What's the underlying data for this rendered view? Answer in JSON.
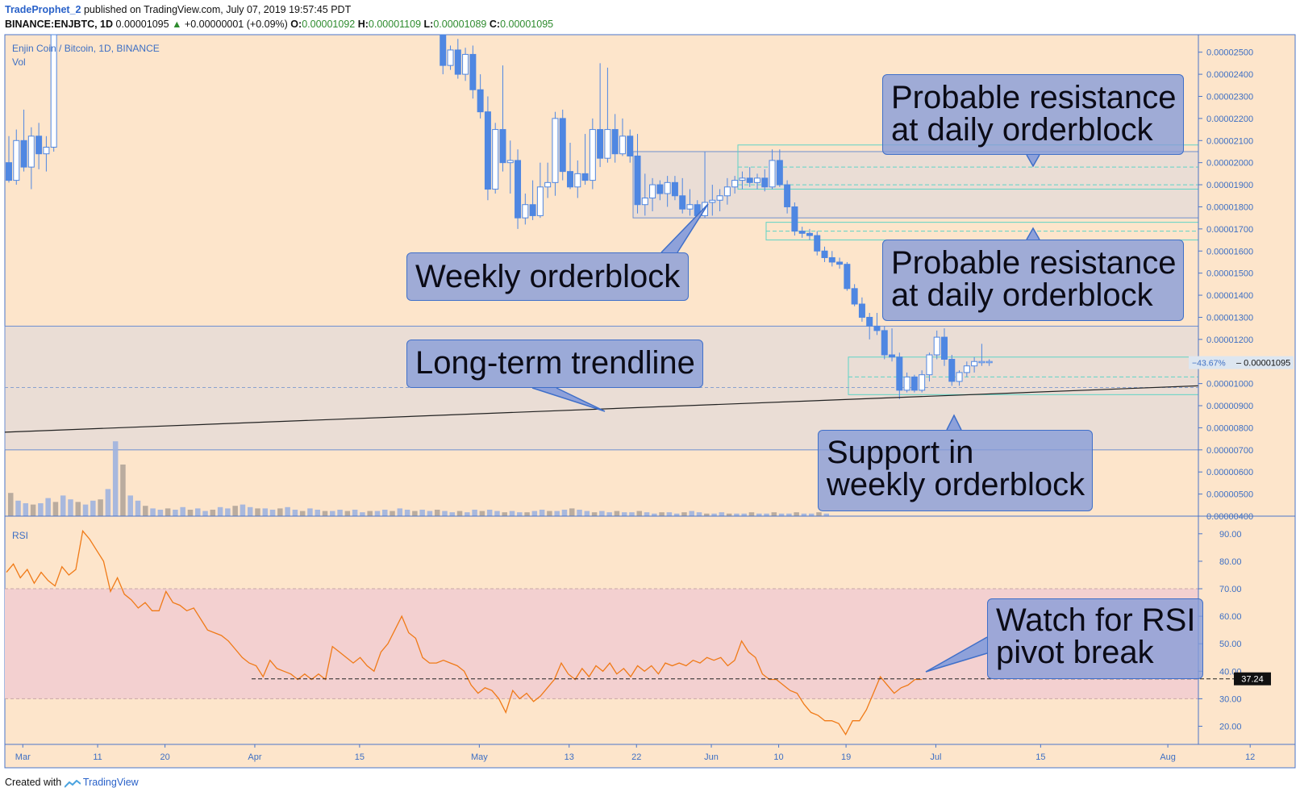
{
  "header": {
    "author": "TradeProphet_2",
    "published": "published on TradingView.com, July 07, 2019 19:57:45 PDT",
    "symbol": "BINANCE:ENJBTC, 1D",
    "last": "0.00001095",
    "change": "+0.00000001 (+0.09%)",
    "o_label": "O:",
    "o_value": "0.00001092",
    "h_label": "H:",
    "h_value": "0.00001109",
    "l_label": "L:",
    "l_value": "0.00001089",
    "c_label": "C:",
    "c_value": "0.00001095"
  },
  "footer": {
    "created_with": "Created with",
    "brand": "TradingView"
  },
  "colors": {
    "background": "#fde5cb",
    "candle_blue": "#4f87e2",
    "orderblock_fill": "#eaddd5",
    "zone_line": "#5fd3c6",
    "rsi_line": "#f07a17",
    "rsi_band": "#f3d0d0",
    "axis_text": "#3d6fc4",
    "annotation_fill": "#8b9fd8"
  },
  "chart_data": [
    {
      "type": "candlestick",
      "title": "Enjin Coin / Bitcoin, 1D, BINANCE",
      "volume_label": "Vol",
      "y_ticks": [
        "0.00002500",
        "0.00002400",
        "0.00002300",
        "0.00002200",
        "0.00002100",
        "0.00002000",
        "0.00001900",
        "0.00001800",
        "0.00001700",
        "0.00001600",
        "0.00001500",
        "0.00001400",
        "0.00001300",
        "0.00001200",
        "0.00001100",
        "0.00001000",
        "0.00000900",
        "0.00000800",
        "0.00000700",
        "0.00000600",
        "0.00000500",
        "0.00000400"
      ],
      "ylim": [
        4e-06,
        2.55e-05
      ],
      "x_ticks": [
        "Mar",
        "11",
        "20",
        "Apr",
        "15",
        "May",
        "13",
        "22",
        "Jun",
        "10",
        "19",
        "Jul",
        "15",
        "Aug",
        "12"
      ],
      "last_price_label": "0.00001095",
      "last_change_label": "−43.67%",
      "weekly_orderblock_upper": [
        2.05e-05,
        1.75e-05
      ],
      "weekly_orderblock_lower": [
        1.26e-05,
        7e-06
      ],
      "daily_zone_upper": [
        2.08e-05,
        1.88e-05
      ],
      "daily_zone_middle": [
        1.73e-05,
        1.65e-05
      ],
      "daily_zone_lower": [
        1.12e-05,
        9.5e-06
      ],
      "trendline_y": [
        7.8e-06,
        9.9e-06
      ],
      "candles": [
        {
          "date": "2019-02-28",
          "o": 2e-05,
          "h": 2.12e-05,
          "l": 1.91e-05,
          "c": 1.92e-05
        },
        {
          "date": "2019-03-01",
          "o": 1.92e-05,
          "h": 2.15e-05,
          "l": 1.9e-05,
          "c": 2.1e-05
        },
        {
          "date": "2019-03-02",
          "o": 2.1e-05,
          "h": 2.24e-05,
          "l": 1.96e-05,
          "c": 1.98e-05
        },
        {
          "date": "2019-03-03",
          "o": 1.98e-05,
          "h": 2.16e-05,
          "l": 1.88e-05,
          "c": 2.12e-05
        },
        {
          "date": "2019-03-04",
          "o": 2.12e-05,
          "h": 2.18e-05,
          "l": 1.97e-05,
          "c": 2.04e-05
        },
        {
          "date": "2019-03-05",
          "o": 2.04e-05,
          "h": 2.12e-05,
          "l": 1.96e-05,
          "c": 2.07e-05
        },
        {
          "date": "2019-03-06",
          "o": 2.07e-05,
          "h": 2.6e-05,
          "l": 2.05e-05,
          "c": 2.58e-05
        },
        {
          "date": "2019-04-27",
          "o": 2.6e-05,
          "h": 2.62e-05,
          "l": 2.4e-05,
          "c": 2.44e-05
        },
        {
          "date": "2019-04-28",
          "o": 2.44e-05,
          "h": 2.53e-05,
          "l": 2.42e-05,
          "c": 2.51e-05
        },
        {
          "date": "2019-04-29",
          "o": 2.51e-05,
          "h": 2.56e-05,
          "l": 2.38e-05,
          "c": 2.4e-05
        },
        {
          "date": "2019-04-30",
          "o": 2.4e-05,
          "h": 2.52e-05,
          "l": 2.37e-05,
          "c": 2.49e-05
        },
        {
          "date": "2019-05-01",
          "o": 2.49e-05,
          "h": 2.53e-05,
          "l": 2.29e-05,
          "c": 2.33e-05
        },
        {
          "date": "2019-05-02",
          "o": 2.33e-05,
          "h": 2.4e-05,
          "l": 2.2e-05,
          "c": 2.23e-05
        },
        {
          "date": "2019-05-03",
          "o": 2.23e-05,
          "h": 2.3e-05,
          "l": 1.83e-05,
          "c": 1.88e-05
        },
        {
          "date": "2019-05-04",
          "o": 1.88e-05,
          "h": 2.18e-05,
          "l": 1.86e-05,
          "c": 2.15e-05
        },
        {
          "date": "2019-05-05",
          "o": 2.15e-05,
          "h": 2.44e-05,
          "l": 1.96e-05,
          "c": 2e-05
        },
        {
          "date": "2019-05-06",
          "o": 2e-05,
          "h": 2.1e-05,
          "l": 1.86e-05,
          "c": 2.01e-05
        },
        {
          "date": "2019-05-07",
          "o": 2.01e-05,
          "h": 2.06e-05,
          "l": 1.7e-05,
          "c": 1.75e-05
        },
        {
          "date": "2019-05-08",
          "o": 1.75e-05,
          "h": 1.86e-05,
          "l": 1.72e-05,
          "c": 1.81e-05
        },
        {
          "date": "2019-05-09",
          "o": 1.81e-05,
          "h": 1.92e-05,
          "l": 1.74e-05,
          "c": 1.76e-05
        },
        {
          "date": "2019-05-10",
          "o": 1.76e-05,
          "h": 2e-05,
          "l": 1.75e-05,
          "c": 1.89e-05
        },
        {
          "date": "2019-05-11",
          "o": 1.89e-05,
          "h": 2e-05,
          "l": 1.84e-05,
          "c": 1.91e-05
        },
        {
          "date": "2019-05-12",
          "o": 1.91e-05,
          "h": 2.23e-05,
          "l": 1.85e-05,
          "c": 2.2e-05
        },
        {
          "date": "2019-05-13",
          "o": 2.2e-05,
          "h": 2.24e-05,
          "l": 1.92e-05,
          "c": 1.96e-05
        },
        {
          "date": "2019-05-14",
          "o": 1.96e-05,
          "h": 2.09e-05,
          "l": 1.88e-05,
          "c": 1.89e-05
        },
        {
          "date": "2019-05-15",
          "o": 1.89e-05,
          "h": 2.01e-05,
          "l": 1.84e-05,
          "c": 1.95e-05
        },
        {
          "date": "2019-05-16",
          "o": 1.95e-05,
          "h": 2.13e-05,
          "l": 1.9e-05,
          "c": 1.92e-05
        },
        {
          "date": "2019-05-17",
          "o": 1.92e-05,
          "h": 2.2e-05,
          "l": 1.88e-05,
          "c": 2.15e-05
        },
        {
          "date": "2019-05-18",
          "o": 2.15e-05,
          "h": 2.45e-05,
          "l": 1.98e-05,
          "c": 2.02e-05
        },
        {
          "date": "2019-05-19",
          "o": 2.02e-05,
          "h": 2.43e-05,
          "l": 2e-05,
          "c": 2.15e-05
        },
        {
          "date": "2019-05-20",
          "o": 2.15e-05,
          "h": 2.22e-05,
          "l": 2e-05,
          "c": 2.04e-05
        },
        {
          "date": "2019-05-21",
          "o": 2.04e-05,
          "h": 2.2e-05,
          "l": 2.03e-05,
          "c": 2.12e-05
        },
        {
          "date": "2019-05-22",
          "o": 2.12e-05,
          "h": 2.15e-05,
          "l": 2e-05,
          "c": 2.03e-05
        },
        {
          "date": "2019-05-23",
          "o": 2.03e-05,
          "h": 2.13e-05,
          "l": 1.77e-05,
          "c": 1.81e-05
        },
        {
          "date": "2019-05-24",
          "o": 1.81e-05,
          "h": 1.95e-05,
          "l": 1.76e-05,
          "c": 1.84e-05
        },
        {
          "date": "2019-05-25",
          "o": 1.84e-05,
          "h": 1.93e-05,
          "l": 1.78e-05,
          "c": 1.9e-05
        },
        {
          "date": "2019-05-26",
          "o": 1.9e-05,
          "h": 1.92e-05,
          "l": 1.83e-05,
          "c": 1.86e-05
        },
        {
          "date": "2019-05-27",
          "o": 1.86e-05,
          "h": 1.94e-05,
          "l": 1.8e-05,
          "c": 1.91e-05
        },
        {
          "date": "2019-05-28",
          "o": 1.91e-05,
          "h": 1.94e-05,
          "l": 1.83e-05,
          "c": 1.85e-05
        },
        {
          "date": "2019-05-29",
          "o": 1.85e-05,
          "h": 1.93e-05,
          "l": 1.77e-05,
          "c": 1.79e-05
        },
        {
          "date": "2019-05-30",
          "o": 1.79e-05,
          "h": 1.88e-05,
          "l": 1.76e-05,
          "c": 1.81e-05
        },
        {
          "date": "2019-05-31",
          "o": 1.81e-05,
          "h": 1.83e-05,
          "l": 1.74e-05,
          "c": 1.76e-05
        },
        {
          "date": "2019-06-01",
          "o": 1.76e-05,
          "h": 2.05e-05,
          "l": 1.75e-05,
          "c": 1.82e-05
        },
        {
          "date": "2019-06-02",
          "o": 1.82e-05,
          "h": 1.9e-05,
          "l": 1.76e-05,
          "c": 1.83e-05
        },
        {
          "date": "2019-06-03",
          "o": 1.83e-05,
          "h": 1.88e-05,
          "l": 1.78e-05,
          "c": 1.85e-05
        },
        {
          "date": "2019-06-04",
          "o": 1.85e-05,
          "h": 1.93e-05,
          "l": 1.81e-05,
          "c": 1.89e-05
        },
        {
          "date": "2019-06-05",
          "o": 1.89e-05,
          "h": 1.94e-05,
          "l": 1.86e-05,
          "c": 1.92e-05
        },
        {
          "date": "2019-06-06",
          "o": 1.92e-05,
          "h": 1.96e-05,
          "l": 1.88e-05,
          "c": 1.93e-05
        },
        {
          "date": "2019-06-07",
          "o": 1.93e-05,
          "h": 1.98e-05,
          "l": 1.89e-05,
          "c": 1.91e-05
        },
        {
          "date": "2019-06-08",
          "o": 1.91e-05,
          "h": 1.95e-05,
          "l": 1.88e-05,
          "c": 1.93e-05
        },
        {
          "date": "2019-06-09",
          "o": 1.93e-05,
          "h": 1.97e-05,
          "l": 1.87e-05,
          "c": 1.89e-05
        },
        {
          "date": "2019-06-10",
          "o": 1.89e-05,
          "h": 2.06e-05,
          "l": 1.88e-05,
          "c": 2.01e-05
        },
        {
          "date": "2019-06-11",
          "o": 2.01e-05,
          "h": 2.06e-05,
          "l": 1.89e-05,
          "c": 1.9e-05
        },
        {
          "date": "2019-06-12",
          "o": 1.9e-05,
          "h": 1.92e-05,
          "l": 1.77e-05,
          "c": 1.8e-05
        },
        {
          "date": "2019-06-13",
          "o": 1.8e-05,
          "h": 1.82e-05,
          "l": 1.67e-05,
          "c": 1.69e-05
        },
        {
          "date": "2019-06-14",
          "o": 1.69e-05,
          "h": 1.71e-05,
          "l": 1.66e-05,
          "c": 1.68e-05
        },
        {
          "date": "2019-06-15",
          "o": 1.68e-05,
          "h": 1.7e-05,
          "l": 1.65e-05,
          "c": 1.67e-05
        },
        {
          "date": "2019-06-16",
          "o": 1.67e-05,
          "h": 1.69e-05,
          "l": 1.58e-05,
          "c": 1.6e-05
        },
        {
          "date": "2019-06-17",
          "o": 1.6e-05,
          "h": 1.62e-05,
          "l": 1.55e-05,
          "c": 1.57e-05
        },
        {
          "date": "2019-06-18",
          "o": 1.57e-05,
          "h": 1.6e-05,
          "l": 1.53e-05,
          "c": 1.55e-05
        },
        {
          "date": "2019-06-19",
          "o": 1.55e-05,
          "h": 1.57e-05,
          "l": 1.52e-05,
          "c": 1.54e-05
        },
        {
          "date": "2019-06-20",
          "o": 1.54e-05,
          "h": 1.55e-05,
          "l": 1.42e-05,
          "c": 1.43e-05
        },
        {
          "date": "2019-06-21",
          "o": 1.43e-05,
          "h": 1.45e-05,
          "l": 1.35e-05,
          "c": 1.36e-05
        },
        {
          "date": "2019-06-22",
          "o": 1.36e-05,
          "h": 1.39e-05,
          "l": 1.28e-05,
          "c": 1.3e-05
        },
        {
          "date": "2019-06-23",
          "o": 1.3e-05,
          "h": 1.32e-05,
          "l": 1.2e-05,
          "c": 1.26e-05
        },
        {
          "date": "2019-06-24",
          "o": 1.26e-05,
          "h": 1.32e-05,
          "l": 1.22e-05,
          "c": 1.24e-05
        },
        {
          "date": "2019-06-25",
          "o": 1.24e-05,
          "h": 1.26e-05,
          "l": 1.11e-05,
          "c": 1.13e-05
        },
        {
          "date": "2019-06-26",
          "o": 1.13e-05,
          "h": 1.25e-05,
          "l": 1.1e-05,
          "c": 1.12e-05
        },
        {
          "date": "2019-06-27",
          "o": 1.12e-05,
          "h": 1.14e-05,
          "l": 9.3e-06,
          "c": 9.7e-06
        },
        {
          "date": "2019-06-28",
          "o": 9.7e-06,
          "h": 1.05e-05,
          "l": 9.6e-06,
          "c": 1.03e-05
        },
        {
          "date": "2019-06-29",
          "o": 1.03e-05,
          "h": 1.04e-05,
          "l": 9.6e-06,
          "c": 9.7e-06
        },
        {
          "date": "2019-06-30",
          "o": 9.7e-06,
          "h": 1.06e-05,
          "l": 9.6e-06,
          "c": 1.04e-05
        },
        {
          "date": "2019-07-01",
          "o": 1.04e-05,
          "h": 1.14e-05,
          "l": 1.01e-05,
          "c": 1.13e-05
        },
        {
          "date": "2019-07-02",
          "o": 1.13e-05,
          "h": 1.24e-05,
          "l": 1.11e-05,
          "c": 1.21e-05
        },
        {
          "date": "2019-07-03",
          "o": 1.21e-05,
          "h": 1.25e-05,
          "l": 1.08e-05,
          "c": 1.11e-05
        },
        {
          "date": "2019-07-04",
          "o": 1.11e-05,
          "h": 1.13e-05,
          "l": 9.9e-06,
          "c": 1.01e-05
        },
        {
          "date": "2019-07-05",
          "o": 1.01e-05,
          "h": 1.06e-05,
          "l": 9.9e-06,
          "c": 1.05e-05
        },
        {
          "date": "2019-07-06",
          "o": 1.05e-05,
          "h": 1.1e-05,
          "l": 1.03e-05,
          "c": 1.08e-05
        },
        {
          "date": "2019-07-07",
          "o": 1.08e-05,
          "h": 1.12e-05,
          "l": 1.05e-05,
          "c": 1.1e-05
        },
        {
          "date": "2019-07-08",
          "o": 1.1e-05,
          "h": 1.18e-05,
          "l": 1.08e-05,
          "c": 1.1e-05
        },
        {
          "date": "2019-07-09",
          "o": 1.1e-05,
          "h": 1.11e-05,
          "l": 1.08e-05,
          "c": 1.1e-05
        }
      ],
      "volume": {
        "ylim": [
          0,
          1
        ],
        "values": [
          0.18,
          0.12,
          0.1,
          0.09,
          0.1,
          0.14,
          0.11,
          0.16,
          0.13,
          0.11,
          0.09,
          0.12,
          0.13,
          0.21,
          0.58,
          0.4,
          0.16,
          0.12,
          0.08,
          0.06,
          0.05,
          0.06,
          0.05,
          0.07,
          0.05,
          0.06,
          0.04,
          0.05,
          0.07,
          0.06,
          0.08,
          0.09,
          0.07,
          0.06,
          0.06,
          0.05,
          0.06,
          0.07,
          0.05,
          0.04,
          0.06,
          0.05,
          0.04,
          0.04,
          0.05,
          0.04,
          0.05,
          0.03,
          0.04,
          0.04,
          0.05,
          0.04,
          0.06,
          0.05,
          0.04,
          0.05,
          0.04,
          0.05,
          0.04,
          0.03,
          0.04,
          0.03,
          0.05,
          0.04,
          0.05,
          0.04,
          0.03,
          0.04,
          0.03,
          0.03,
          0.04,
          0.05,
          0.04,
          0.04,
          0.05,
          0.06,
          0.05,
          0.04,
          0.03,
          0.04,
          0.03,
          0.04,
          0.03,
          0.03,
          0.04,
          0.03,
          0.02,
          0.03,
          0.03,
          0.02,
          0.03,
          0.04,
          0.03,
          0.02,
          0.02,
          0.03,
          0.02,
          0.02,
          0.02,
          0.03,
          0.02,
          0.02,
          0.03,
          0.02,
          0.02,
          0.03,
          0.02,
          0.02,
          0.03,
          0.02
        ]
      }
    },
    {
      "type": "line",
      "title": "RSI",
      "y_ticks": [
        "90.00",
        "80.00",
        "70.00",
        "60.00",
        "50.00",
        "40.00",
        "30.00",
        "20.00"
      ],
      "ylim": [
        13.4,
        96.4
      ],
      "band": [
        30,
        70
      ],
      "last_value_label": "37.24",
      "pivot_level": 37.24,
      "values": [
        76,
        79,
        74,
        77,
        72,
        76,
        73,
        71,
        78,
        75,
        77,
        91,
        88,
        84,
        80,
        69,
        74,
        68,
        66,
        63,
        65,
        62,
        62,
        69,
        65,
        64,
        62,
        63,
        59,
        55,
        54,
        53,
        51,
        48,
        45,
        43,
        42,
        38,
        44,
        41,
        40,
        39,
        37,
        39,
        37,
        39,
        37,
        49,
        47,
        45,
        43,
        45,
        42,
        40,
        47,
        50,
        55,
        60,
        54,
        52,
        45,
        43,
        43,
        44,
        43,
        42,
        40,
        35,
        32,
        34,
        33,
        30,
        25,
        33,
        30,
        32,
        29,
        31,
        34,
        37,
        43,
        39,
        37,
        41,
        38,
        42,
        40,
        43,
        39,
        41,
        38,
        42,
        40,
        42,
        39,
        43,
        42,
        43,
        42,
        44,
        43,
        45,
        44,
        45,
        42,
        44,
        51,
        47,
        45,
        39,
        37,
        37,
        35,
        33,
        32,
        28,
        25,
        24,
        22,
        22,
        21,
        17,
        22,
        22,
        26,
        32,
        38,
        35,
        32,
        34,
        35,
        37,
        37
      ]
    }
  ],
  "annotations": {
    "daily_upper": [
      "Probable resistance",
      "at daily orderblock"
    ],
    "daily_lower": [
      "Probable resistance",
      "at daily orderblock"
    ],
    "weekly": "Weekly orderblock",
    "trendline": "Long-term trendline",
    "support": [
      "Support in",
      "weekly orderblock"
    ],
    "rsi": [
      "Watch for RSI",
      "pivot break"
    ]
  }
}
